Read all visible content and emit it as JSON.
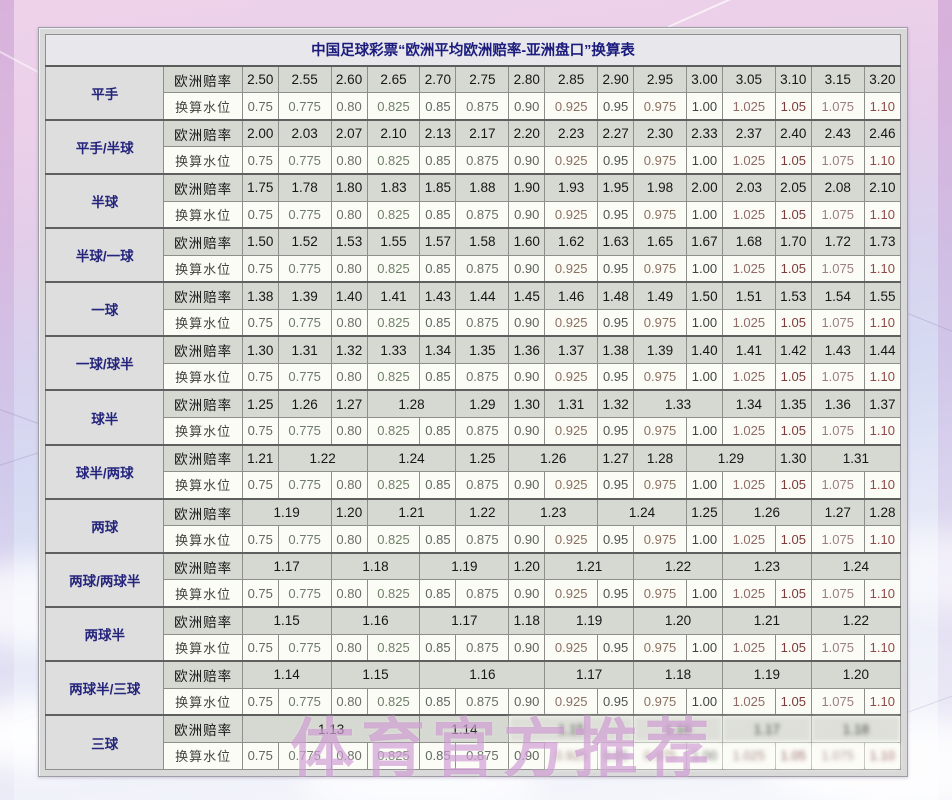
{
  "page": {
    "title": "中国足球彩票“欧洲平均欧洲赔率-亚洲盘口”换算表",
    "watermark": "体育官方推荐"
  },
  "labels": {
    "odds_row": "欧洲赔率",
    "water_row": "换算水位"
  },
  "water_levels": [
    "0.75",
    "0.775",
    "0.80",
    "0.825",
    "0.85",
    "0.875",
    "0.90",
    "0.925",
    "0.95",
    "0.975",
    "1.00",
    "1.025",
    "1.05",
    "1.075",
    "1.10"
  ],
  "colors": {
    "title_text": "#1b1b7e",
    "handicap_text": "#24247c",
    "odds_row_bg": "#d6d9d1",
    "water_row_bg": "#fcfcf7",
    "water_text": [
      "#63675f",
      "#6d7a6d",
      "#6a6e66",
      "#6f7f68",
      "#5f6660",
      "#6a6f67",
      "#5e635c",
      "#8a7061",
      "#4f5550",
      "#8a7061",
      "#3f443f",
      "#8f6a67",
      "#7c3a3a",
      "#9b7f80",
      "#904a4a"
    ]
  },
  "blur_region": {
    "group_index": 12,
    "odds_from": 2,
    "water_from": 7
  },
  "groups": [
    {
      "handicap": "平手",
      "odds": [
        {
          "v": "2.50",
          "s": 1
        },
        {
          "v": "2.55",
          "s": 1
        },
        {
          "v": "2.60",
          "s": 1
        },
        {
          "v": "2.65",
          "s": 1
        },
        {
          "v": "2.70",
          "s": 1
        },
        {
          "v": "2.75",
          "s": 1
        },
        {
          "v": "2.80",
          "s": 1
        },
        {
          "v": "2.85",
          "s": 1
        },
        {
          "v": "2.90",
          "s": 1
        },
        {
          "v": "2.95",
          "s": 1
        },
        {
          "v": "3.00",
          "s": 1
        },
        {
          "v": "3.05",
          "s": 1
        },
        {
          "v": "3.10",
          "s": 1
        },
        {
          "v": "3.15",
          "s": 1
        },
        {
          "v": "3.20",
          "s": 1
        }
      ]
    },
    {
      "handicap": "平手/半球",
      "odds": [
        {
          "v": "2.00",
          "s": 1
        },
        {
          "v": "2.03",
          "s": 1
        },
        {
          "v": "2.07",
          "s": 1
        },
        {
          "v": "2.10",
          "s": 1
        },
        {
          "v": "2.13",
          "s": 1
        },
        {
          "v": "2.17",
          "s": 1
        },
        {
          "v": "2.20",
          "s": 1
        },
        {
          "v": "2.23",
          "s": 1
        },
        {
          "v": "2.27",
          "s": 1
        },
        {
          "v": "2.30",
          "s": 1
        },
        {
          "v": "2.33",
          "s": 1
        },
        {
          "v": "2.37",
          "s": 1
        },
        {
          "v": "2.40",
          "s": 1
        },
        {
          "v": "2.43",
          "s": 1
        },
        {
          "v": "2.46",
          "s": 1
        }
      ]
    },
    {
      "handicap": "半球",
      "odds": [
        {
          "v": "1.75",
          "s": 1
        },
        {
          "v": "1.78",
          "s": 1
        },
        {
          "v": "1.80",
          "s": 1
        },
        {
          "v": "1.83",
          "s": 1
        },
        {
          "v": "1.85",
          "s": 1
        },
        {
          "v": "1.88",
          "s": 1
        },
        {
          "v": "1.90",
          "s": 1
        },
        {
          "v": "1.93",
          "s": 1
        },
        {
          "v": "1.95",
          "s": 1
        },
        {
          "v": "1.98",
          "s": 1
        },
        {
          "v": "2.00",
          "s": 1
        },
        {
          "v": "2.03",
          "s": 1
        },
        {
          "v": "2.05",
          "s": 1
        },
        {
          "v": "2.08",
          "s": 1
        },
        {
          "v": "2.10",
          "s": 1
        }
      ]
    },
    {
      "handicap": "半球/一球",
      "odds": [
        {
          "v": "1.50",
          "s": 1
        },
        {
          "v": "1.52",
          "s": 1
        },
        {
          "v": "1.53",
          "s": 1
        },
        {
          "v": "1.55",
          "s": 1
        },
        {
          "v": "1.57",
          "s": 1
        },
        {
          "v": "1.58",
          "s": 1
        },
        {
          "v": "1.60",
          "s": 1
        },
        {
          "v": "1.62",
          "s": 1
        },
        {
          "v": "1.63",
          "s": 1
        },
        {
          "v": "1.65",
          "s": 1
        },
        {
          "v": "1.67",
          "s": 1
        },
        {
          "v": "1.68",
          "s": 1
        },
        {
          "v": "1.70",
          "s": 1
        },
        {
          "v": "1.72",
          "s": 1
        },
        {
          "v": "1.73",
          "s": 1
        }
      ]
    },
    {
      "handicap": "一球",
      "odds": [
        {
          "v": "1.38",
          "s": 1
        },
        {
          "v": "1.39",
          "s": 1
        },
        {
          "v": "1.40",
          "s": 1
        },
        {
          "v": "1.41",
          "s": 1
        },
        {
          "v": "1.43",
          "s": 1
        },
        {
          "v": "1.44",
          "s": 1
        },
        {
          "v": "1.45",
          "s": 1
        },
        {
          "v": "1.46",
          "s": 1
        },
        {
          "v": "1.48",
          "s": 1
        },
        {
          "v": "1.49",
          "s": 1
        },
        {
          "v": "1.50",
          "s": 1
        },
        {
          "v": "1.51",
          "s": 1
        },
        {
          "v": "1.53",
          "s": 1
        },
        {
          "v": "1.54",
          "s": 1
        },
        {
          "v": "1.55",
          "s": 1
        }
      ]
    },
    {
      "handicap": "一球/球半",
      "odds": [
        {
          "v": "1.30",
          "s": 1
        },
        {
          "v": "1.31",
          "s": 1
        },
        {
          "v": "1.32",
          "s": 1
        },
        {
          "v": "1.33",
          "s": 1
        },
        {
          "v": "1.34",
          "s": 1
        },
        {
          "v": "1.35",
          "s": 1
        },
        {
          "v": "1.36",
          "s": 1
        },
        {
          "v": "1.37",
          "s": 1
        },
        {
          "v": "1.38",
          "s": 1
        },
        {
          "v": "1.39",
          "s": 1
        },
        {
          "v": "1.40",
          "s": 1
        },
        {
          "v": "1.41",
          "s": 1
        },
        {
          "v": "1.42",
          "s": 1
        },
        {
          "v": "1.43",
          "s": 1
        },
        {
          "v": "1.44",
          "s": 1
        }
      ]
    },
    {
      "handicap": "球半",
      "odds": [
        {
          "v": "1.25",
          "s": 1
        },
        {
          "v": "1.26",
          "s": 1
        },
        {
          "v": "1.27",
          "s": 1
        },
        {
          "v": "1.28",
          "s": 2
        },
        {
          "v": "1.29",
          "s": 1
        },
        {
          "v": "1.30",
          "s": 1
        },
        {
          "v": "1.31",
          "s": 1
        },
        {
          "v": "1.32",
          "s": 1
        },
        {
          "v": "1.33",
          "s": 2
        },
        {
          "v": "1.34",
          "s": 1
        },
        {
          "v": "1.35",
          "s": 1
        },
        {
          "v": "1.36",
          "s": 1
        },
        {
          "v": "1.37",
          "s": 1
        }
      ]
    },
    {
      "handicap": "球半/两球",
      "odds": [
        {
          "v": "1.21",
          "s": 1
        },
        {
          "v": "1.22",
          "s": 2
        },
        {
          "v": "1.24",
          "s": 2
        },
        {
          "v": "1.25",
          "s": 1
        },
        {
          "v": "1.26",
          "s": 2
        },
        {
          "v": "1.27",
          "s": 1
        },
        {
          "v": "1.28",
          "s": 1
        },
        {
          "v": "1.29",
          "s": 2
        },
        {
          "v": "1.30",
          "s": 1
        },
        {
          "v": "1.31",
          "s": 2
        }
      ]
    },
    {
      "handicap": "两球",
      "odds": [
        {
          "v": "1.19",
          "s": 2
        },
        {
          "v": "1.20",
          "s": 1
        },
        {
          "v": "1.21",
          "s": 2
        },
        {
          "v": "1.22",
          "s": 1
        },
        {
          "v": "1.23",
          "s": 2
        },
        {
          "v": "1.24",
          "s": 2
        },
        {
          "v": "1.25",
          "s": 1
        },
        {
          "v": "1.26",
          "s": 2
        },
        {
          "v": "1.27",
          "s": 1
        },
        {
          "v": "1.28",
          "s": 1
        }
      ]
    },
    {
      "handicap": "两球/两球半",
      "odds": [
        {
          "v": "1.17",
          "s": 2
        },
        {
          "v": "1.18",
          "s": 2
        },
        {
          "v": "1.19",
          "s": 2
        },
        {
          "v": "1.20",
          "s": 1
        },
        {
          "v": "1.21",
          "s": 2
        },
        {
          "v": "1.22",
          "s": 2
        },
        {
          "v": "1.23",
          "s": 2
        },
        {
          "v": "1.24",
          "s": 2
        }
      ]
    },
    {
      "handicap": "两球半",
      "odds": [
        {
          "v": "1.15",
          "s": 2
        },
        {
          "v": "1.16",
          "s": 2
        },
        {
          "v": "1.17",
          "s": 2
        },
        {
          "v": "1.18",
          "s": 1
        },
        {
          "v": "1.19",
          "s": 2
        },
        {
          "v": "1.20",
          "s": 2
        },
        {
          "v": "1.21",
          "s": 2
        },
        {
          "v": "1.22",
          "s": 2
        }
      ]
    },
    {
      "handicap": "两球半/三球",
      "odds": [
        {
          "v": "1.14",
          "s": 2
        },
        {
          "v": "1.15",
          "s": 2
        },
        {
          "v": "1.16",
          "s": 3
        },
        {
          "v": "1.17",
          "s": 2
        },
        {
          "v": "1.18",
          "s": 2
        },
        {
          "v": "1.19",
          "s": 2
        },
        {
          "v": "1.20",
          "s": 2
        }
      ]
    },
    {
      "handicap": "三球",
      "odds": [
        {
          "v": "1.13",
          "s": 4
        },
        {
          "v": "1.14",
          "s": 2
        },
        {
          "v": "1.15",
          "s": 3
        },
        {
          "v": "1.16",
          "s": 2
        },
        {
          "v": "1.17",
          "s": 2
        },
        {
          "v": "1.18",
          "s": 2
        }
      ]
    }
  ]
}
